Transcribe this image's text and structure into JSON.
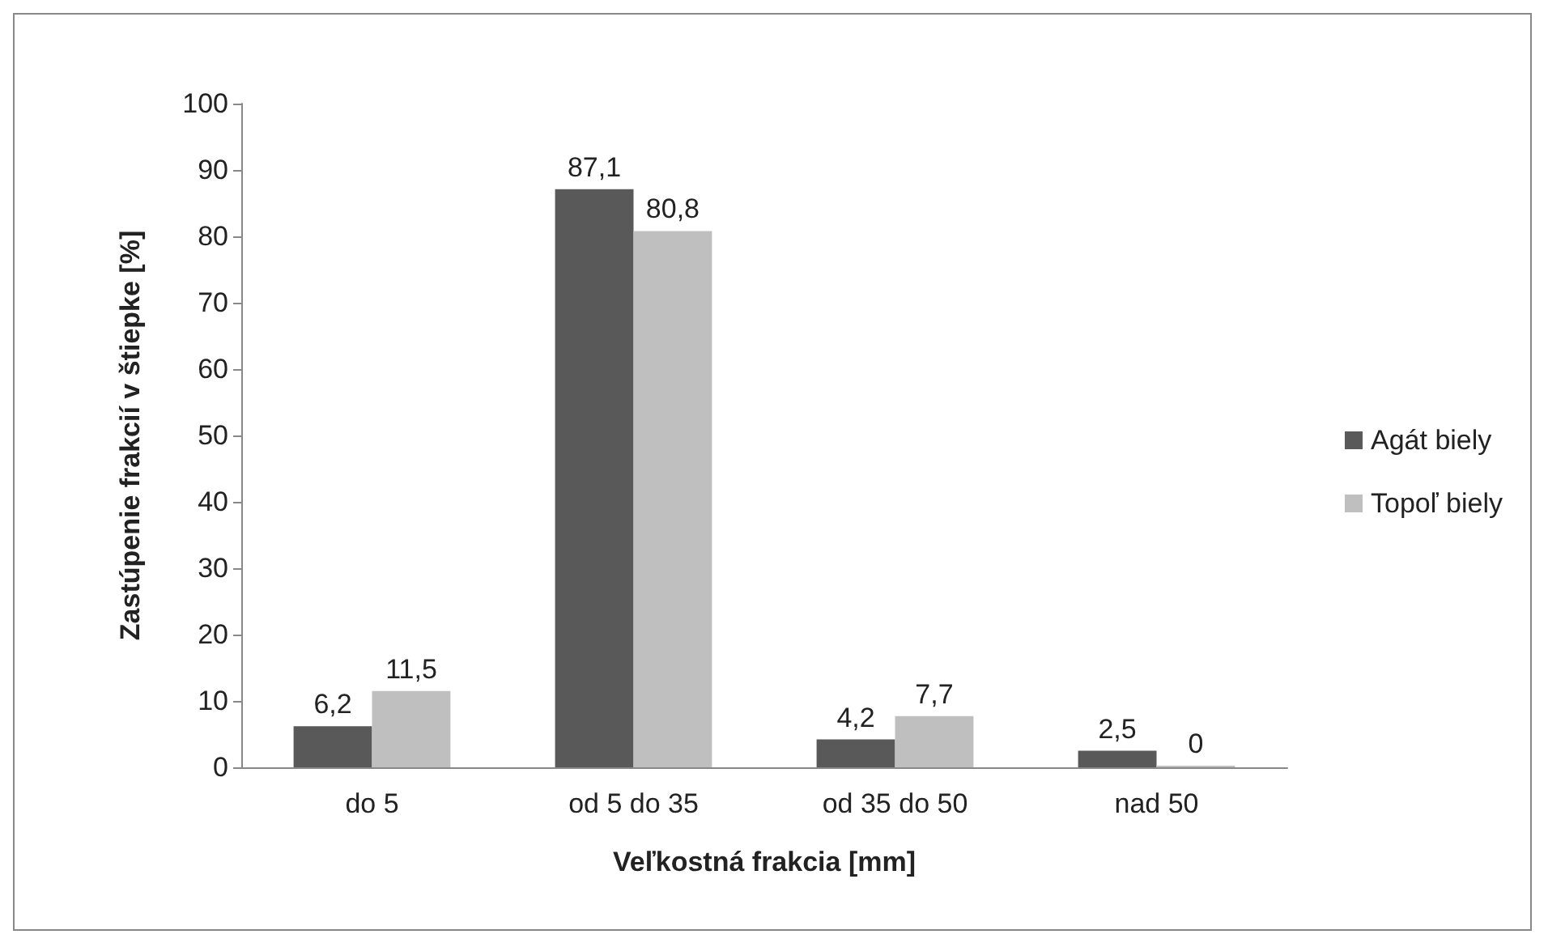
{
  "chart_data": {
    "type": "bar",
    "xlabel": "Veľkostná frakcia [mm]",
    "ylabel": "Zastúpenie frakcií v štiepke [%]",
    "categories": [
      "do 5",
      "od 5 do 35",
      "od 35 do 50",
      "nad 50"
    ],
    "series": [
      {
        "name": "Agát biely",
        "color": "#595959",
        "values": [
          6.2,
          87.1,
          4.2,
          2.5
        ],
        "value_labels": [
          "6,2",
          "87,1",
          "4,2",
          "2,5"
        ]
      },
      {
        "name": "Topoľ biely",
        "color": "#bfbfbf",
        "values": [
          11.5,
          80.8,
          7.7,
          0
        ],
        "value_labels": [
          "11,5",
          "80,8",
          "7,7",
          "0"
        ]
      }
    ],
    "ylim": [
      0,
      100
    ],
    "yticks": [
      0,
      10,
      20,
      30,
      40,
      50,
      60,
      70,
      80,
      90,
      100
    ],
    "grid": false,
    "legend": "right"
  }
}
